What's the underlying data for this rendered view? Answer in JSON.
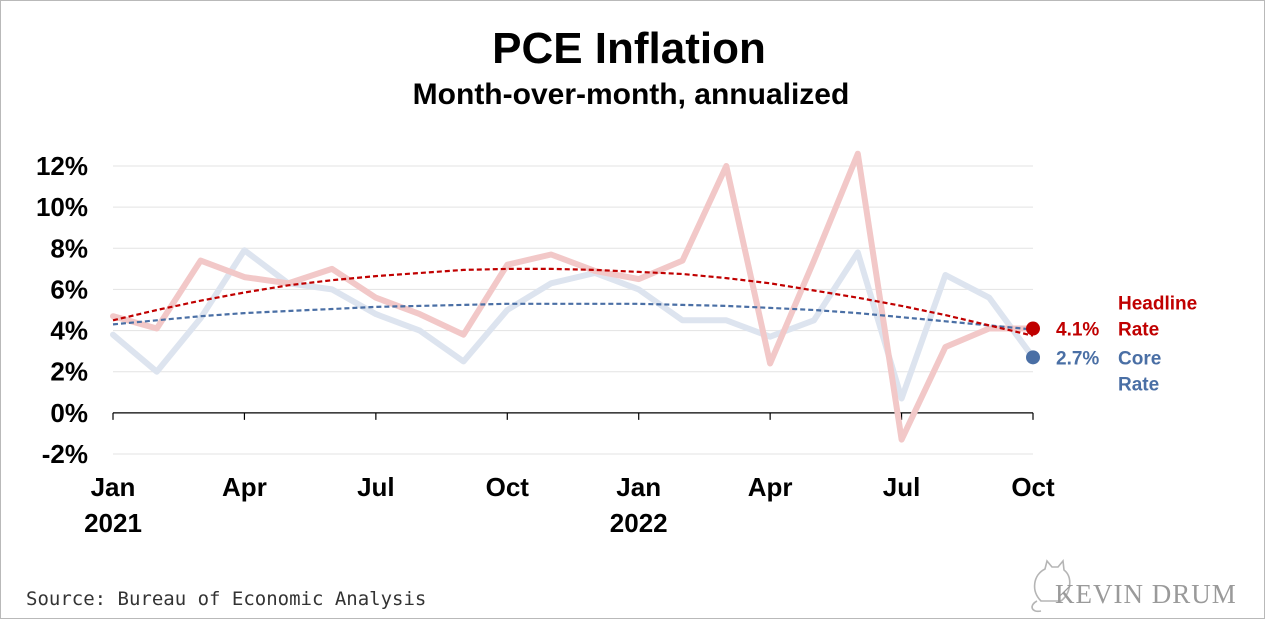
{
  "chart_data": {
    "type": "line",
    "title": "PCE Inflation",
    "subtitle": "Month-over-month, annualized",
    "ylim": [
      -2,
      12
    ],
    "yticks": [
      "12%",
      "10%",
      "8%",
      "6%",
      "4%",
      "2%",
      "0%",
      "-2%"
    ],
    "xtick_labels": [
      {
        "label": "Jan",
        "year": "2021"
      },
      {
        "label": "Apr",
        "year": ""
      },
      {
        "label": "Jul",
        "year": ""
      },
      {
        "label": "Oct",
        "year": ""
      },
      {
        "label": "Jan",
        "year": "2022"
      },
      {
        "label": "Apr",
        "year": ""
      },
      {
        "label": "Jul",
        "year": ""
      },
      {
        "label": "Oct",
        "year": ""
      }
    ],
    "x": [
      "Jan 2021",
      "Feb 2021",
      "Mar 2021",
      "Apr 2021",
      "May 2021",
      "Jun 2021",
      "Jul 2021",
      "Aug 2021",
      "Sep 2021",
      "Oct 2021",
      "Nov 2021",
      "Dec 2021",
      "Jan 2022",
      "Feb 2022",
      "Mar 2022",
      "Apr 2022",
      "May 2022",
      "Jun 2022",
      "Jul 2022",
      "Aug 2022",
      "Sep 2022",
      "Oct 2022"
    ],
    "series": [
      {
        "name": "Headline Rate",
        "color": "#c00000",
        "fade_color": "#f2c8c8",
        "values": [
          4.7,
          4.1,
          7.4,
          6.6,
          6.3,
          7.0,
          5.6,
          4.8,
          3.8,
          7.2,
          7.7,
          6.9,
          6.5,
          7.4,
          12.0,
          2.4,
          7.4,
          12.6,
          -1.3,
          3.2,
          4.1,
          4.1
        ],
        "trend": [
          4.5,
          5.0,
          5.45,
          5.85,
          6.2,
          6.45,
          6.65,
          6.8,
          6.95,
          7.0,
          7.0,
          6.95,
          6.85,
          6.75,
          6.55,
          6.3,
          5.95,
          5.6,
          5.2,
          4.75,
          4.25,
          3.75
        ],
        "annotation_value": "4.1%",
        "annotation_label_lines": [
          "Headline",
          "Rate"
        ]
      },
      {
        "name": "Core Rate",
        "color": "#4a6fa5",
        "fade_color": "#dde4ef",
        "values": [
          3.8,
          2.0,
          4.6,
          7.9,
          6.3,
          6.0,
          4.8,
          4.0,
          2.5,
          5.0,
          6.3,
          6.8,
          6.0,
          4.5,
          4.5,
          3.7,
          4.5,
          7.8,
          0.7,
          6.7,
          5.6,
          2.7
        ],
        "trend": [
          4.3,
          4.5,
          4.7,
          4.85,
          4.95,
          5.05,
          5.15,
          5.2,
          5.25,
          5.3,
          5.3,
          5.3,
          5.3,
          5.25,
          5.2,
          5.1,
          5.0,
          4.85,
          4.65,
          4.45,
          4.25,
          4.05
        ],
        "annotation_value": "2.7%",
        "annotation_label_lines": [
          "Core",
          "Rate"
        ]
      }
    ],
    "grid": true,
    "legend": "right-end-annotations"
  },
  "source": "Source: Bureau of Economic Analysis",
  "brand": "KEVIN DRUM"
}
